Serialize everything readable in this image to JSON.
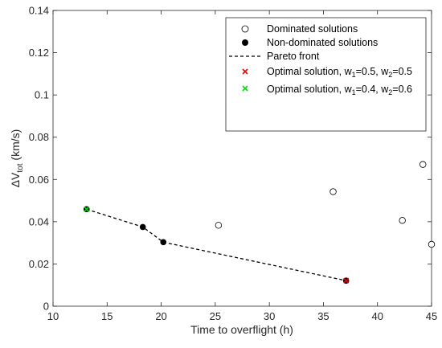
{
  "chart_data": {
    "type": "scatter",
    "xlabel": "Time to overflight (h)",
    "ylabel": "ΔV",
    "ylabel_sub": "tot",
    "ylabel_unit": " (km/s)",
    "xlim": [
      10,
      45
    ],
    "ylim": [
      0,
      0.14
    ],
    "xticks": [
      10,
      15,
      20,
      25,
      30,
      35,
      40,
      45
    ],
    "xtick_labels": [
      "10",
      "15",
      "20",
      "25",
      "30",
      "35",
      "40",
      "45"
    ],
    "yticks": [
      0,
      0.02,
      0.04,
      0.06,
      0.08,
      0.1,
      0.12,
      0.14
    ],
    "ytick_labels": [
      "0",
      "0.02",
      "0.04",
      "0.06",
      "0.08",
      "0.1",
      "0.12",
      "0.14"
    ],
    "grid": false,
    "legend_position": "top-right",
    "series": [
      {
        "name": "Dominated solutions",
        "marker": "open-circle",
        "color": "#000000",
        "x": [
          25.3,
          35.9,
          42.3,
          44.2,
          45.0
        ],
        "y": [
          0.0383,
          0.0542,
          0.0406,
          0.0671,
          0.0293
        ]
      },
      {
        "name": "Non-dominated solutions",
        "marker": "filled-circle",
        "color": "#000000",
        "x": [
          13.1,
          18.3,
          20.2,
          37.1
        ],
        "y": [
          0.0459,
          0.0375,
          0.0303,
          0.0121
        ]
      },
      {
        "name": "Pareto front",
        "marker": "dashed-line",
        "color": "#000000",
        "x": [
          13.1,
          18.3,
          20.2,
          37.1
        ],
        "y": [
          0.0459,
          0.0375,
          0.0303,
          0.0121
        ]
      },
      {
        "name": "Optimal solution, w",
        "name_sub1": "1",
        "name_mid": "=0.5, w",
        "name_sub2": "2",
        "name_end": "=0.5",
        "marker": "cross",
        "color": "#e8000b",
        "x": [
          37.1
        ],
        "y": [
          0.0121
        ]
      },
      {
        "name": "Optimal solution, w",
        "name_sub1": "1",
        "name_mid": "=0.4, w",
        "name_sub2": "2",
        "name_end": "=0.6",
        "marker": "cross",
        "color": "#00dd00",
        "x": [
          13.1
        ],
        "y": [
          0.0459
        ]
      }
    ]
  }
}
